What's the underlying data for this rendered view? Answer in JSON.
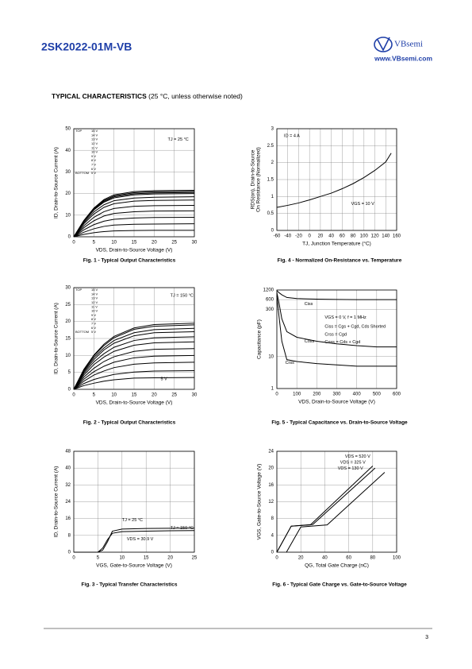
{
  "header": {
    "title": "2SK2022-01M-VB",
    "logo": "VBsemi",
    "url": "www.VBsemi.com"
  },
  "section": {
    "title": "TYPICAL CHARACTERISTICS",
    "note": "(25 °C, unless otherwise noted)"
  },
  "chart_data": [
    {
      "type": "line",
      "caption": "Fig. 1 - Typical Output Characteristics",
      "x_label": "VDS, Drain-to-Source Voltage (V)",
      "y_label": "ID, Drain-to-Source Current (A)",
      "xlim": [
        0,
        30
      ],
      "xticks": [
        0,
        5,
        10,
        15,
        20,
        25,
        30
      ],
      "ylim": [
        0,
        50
      ],
      "yticks": [
        0,
        10,
        20,
        30,
        40,
        50
      ],
      "grid": true,
      "color": "#000000",
      "legend": "list",
      "legend_top": "TOP",
      "legend_bottom": "BOTTOM",
      "annotations": [
        "TJ = 25 °C"
      ],
      "x": [
        0,
        2.5,
        5,
        7.5,
        10,
        15,
        20,
        30
      ],
      "series": [
        {
          "name": "15 V",
          "values": [
            0,
            7.5,
            13.3,
            17.2,
            19.4,
            20.9,
            21.3,
            21.5
          ]
        },
        {
          "name": "14 V",
          "values": [
            0,
            7.4,
            13.0,
            16.8,
            18.9,
            20.4,
            20.8,
            21
          ]
        },
        {
          "name": "13 V",
          "values": [
            0,
            7.2,
            12.7,
            16.4,
            18.5,
            19.9,
            20.3,
            20.5
          ]
        },
        {
          "name": "12 V",
          "values": [
            0,
            7,
            12.4,
            16,
            18,
            19.4,
            19.8,
            20
          ]
        },
        {
          "name": "11 V",
          "values": [
            0,
            6.5,
            11.5,
            14.8,
            16.7,
            17.9,
            18.3,
            18.5
          ]
        },
        {
          "name": "10 V",
          "values": [
            0,
            6,
            10.5,
            13.6,
            15.3,
            16.5,
            16.8,
            17
          ]
        },
        {
          "name": "9 V",
          "values": [
            0,
            5.1,
            9,
            11.6,
            13.1,
            14.1,
            14.4,
            14.5
          ]
        },
        {
          "name": "8 V",
          "values": [
            0,
            4.2,
            7.4,
            9.6,
            10.8,
            11.6,
            11.9,
            12
          ]
        },
        {
          "name": "7 V",
          "values": [
            0,
            3.2,
            5.6,
            7.2,
            8.1,
            8.7,
            8.9,
            9
          ]
        },
        {
          "name": "6 V",
          "values": [
            0,
            2.1,
            3.7,
            4.8,
            5.4,
            5.8,
            5.9,
            6
          ]
        },
        {
          "name": "5 V",
          "values": [
            0,
            1.1,
            1.9,
            2.4,
            2.7,
            2.9,
            3,
            3
          ]
        }
      ]
    },
    {
      "type": "line",
      "caption": "Fig. 2 - Typical Output Characteristics",
      "x_label": "VDS, Drain-to-Source Voltage (V)",
      "y_label": "ID, Drain-to-Source Current (A)",
      "xlim": [
        0,
        30
      ],
      "xticks": [
        0,
        5,
        10,
        15,
        20,
        25,
        30
      ],
      "ylim": [
        0,
        30
      ],
      "yticks": [
        0,
        5,
        10,
        15,
        20,
        25,
        30
      ],
      "grid": true,
      "color": "#000000",
      "legend": "list",
      "legend_top": "TOP",
      "legend_bottom": "BOTTOM",
      "annotations": [
        "TJ = 150 °C",
        "5 V"
      ],
      "x": [
        0,
        2.5,
        5,
        7.5,
        10,
        15,
        20,
        30
      ],
      "series": [
        {
          "name": "15 V",
          "values": [
            0,
            5.9,
            10.1,
            13.3,
            15.6,
            18.1,
            19.1,
            19.5
          ]
        },
        {
          "name": "14 V",
          "values": [
            0,
            5.7,
            9.9,
            12.9,
            15.2,
            17.7,
            18.6,
            19
          ]
        },
        {
          "name": "13 V",
          "values": [
            0,
            5.4,
            9.4,
            12.2,
            14.4,
            16.7,
            17.6,
            18
          ]
        },
        {
          "name": "12 V",
          "values": [
            0,
            5.1,
            8.8,
            11.6,
            13.6,
            15.8,
            16.7,
            17
          ]
        },
        {
          "name": "11 V",
          "values": [
            0,
            4.7,
            8.1,
            10.5,
            12.4,
            14.4,
            15.2,
            15.5
          ]
        },
        {
          "name": "10 V",
          "values": [
            0,
            4.2,
            7.3,
            9.5,
            11.2,
            13,
            13.7,
            14
          ]
        },
        {
          "name": "9 V",
          "values": [
            0,
            3.6,
            6.2,
            8.2,
            9.6,
            11.2,
            11.8,
            12
          ]
        },
        {
          "name": "8 V",
          "values": [
            0,
            3,
            5.2,
            6.8,
            8,
            9.3,
            9.8,
            10
          ]
        },
        {
          "name": "7 V",
          "values": [
            0,
            2.4,
            4.2,
            5.4,
            6.4,
            7.4,
            7.8,
            8
          ]
        },
        {
          "name": "6 V",
          "values": [
            0,
            1.7,
            2.9,
            3.7,
            4.4,
            5.1,
            5.4,
            5.5
          ]
        },
        {
          "name": "5 V",
          "values": [
            0,
            1.1,
            1.8,
            2.4,
            2.8,
            3.3,
            3.4,
            3.5
          ]
        }
      ]
    },
    {
      "type": "line",
      "caption": "Fig. 3 - Typical Transfer Characteristics",
      "x_label": "VGS, Gate-to-Source Voltage (V)",
      "y_label": "ID, Drain-to-Source Current (A)",
      "xlim": [
        0,
        25
      ],
      "xticks": [
        0,
        5,
        10,
        15,
        20,
        25
      ],
      "ylim": [
        0,
        48
      ],
      "yticks": [
        0,
        8,
        16,
        24,
        32,
        40,
        48
      ],
      "grid": true,
      "color": "#000000",
      "annotations": [
        "TJ = 25 °C",
        "TJ = 150 °C",
        "VDS = 30.9 V"
      ],
      "x": [
        0,
        5,
        6,
        7,
        8,
        10,
        15,
        20,
        25
      ],
      "series": [
        {
          "name": "TJ = 25 °C",
          "values": [
            0,
            0,
            1,
            5,
            10,
            11,
            11.3,
            11.4,
            11.5
          ]
        },
        {
          "name": "TJ = 150 °C",
          "values": [
            0,
            0,
            2,
            6,
            9,
            9.8,
            10,
            10.2,
            10.3
          ]
        }
      ]
    },
    {
      "type": "line",
      "caption": "Fig. 4 - Normalized On-Resistance vs. Temperature",
      "x_label": "TJ, Junction Temperature (°C)",
      "y_label": [
        "RDS(on), Drain-to-Source",
        "On Resistance (Normalized)"
      ],
      "xlim": [
        -60,
        160
      ],
      "xticks": [
        -60,
        -40,
        -20,
        0,
        20,
        40,
        60,
        80,
        100,
        120,
        140,
        160
      ],
      "ylim": [
        0,
        3
      ],
      "yticks": [
        0,
        0.5,
        1,
        1.5,
        2,
        2.5,
        3
      ],
      "grid": true,
      "color": "#000000",
      "annotations": [
        "ID = 4 A",
        "VGS = 10 V"
      ],
      "x": [
        -60,
        -40,
        -20,
        0,
        20,
        40,
        60,
        80,
        100,
        120,
        140,
        150
      ],
      "series": [
        {
          "name": "RDS(on)",
          "values": [
            0.68,
            0.74,
            0.81,
            0.9,
            1.0,
            1.1,
            1.23,
            1.38,
            1.56,
            1.77,
            2.02,
            2.28
          ]
        }
      ]
    },
    {
      "type": "line",
      "caption": "Fig. 5 - Typical Capacitance vs. Drain-to-Source Voltage",
      "x_label": "VDS, Drain-to-Source Voltage (V)",
      "y_label": "Capacitance (pF)",
      "xlim": [
        0,
        600
      ],
      "xticks": [
        0,
        100,
        200,
        300,
        400,
        500,
        600
      ],
      "ylim": [
        1,
        1200
      ],
      "yticks": [
        1,
        10,
        300,
        600,
        1200
      ],
      "log_y": true,
      "grid": true,
      "color": "#000000",
      "legend": "inline",
      "annotations": [
        "VGS = 0 V, f = 1 MHz",
        "Ciss = Cgs + Cgd, Cds Shorted",
        "Crss = Cgd",
        "Coss = Cds + Cgd"
      ],
      "x": [
        0,
        10,
        25,
        50,
        100,
        200,
        300,
        400,
        500,
        600
      ],
      "series": [
        {
          "name": "Ciss",
          "values": [
            1150,
            1000,
            850,
            700,
            650,
            620,
            610,
            600,
            600,
            600
          ]
        },
        {
          "name": "Coss",
          "values": [
            1000,
            500,
            150,
            60,
            40,
            30,
            25,
            22,
            20,
            20
          ]
        },
        {
          "name": "Crss",
          "values": [
            800,
            200,
            30,
            8,
            7,
            6,
            5.5,
            5,
            5,
            5
          ]
        }
      ]
    },
    {
      "type": "line",
      "caption": "Fig. 6 - Typical Gate Charge vs. Gate-to-Source Voltage",
      "x_label": "QG, Total Gate Charge (nC)",
      "y_label": "VGS, Gate-to-Source Voltage (V)",
      "xlim": [
        0,
        100
      ],
      "xticks": [
        0,
        20,
        40,
        60,
        80,
        100
      ],
      "ylim": [
        0,
        24
      ],
      "yticks": [
        0,
        4,
        8,
        12,
        16,
        20,
        24
      ],
      "grid": true,
      "color": "#000000",
      "legend": "inline",
      "series": [
        {
          "name": "VDS = 520 V",
          "x": [
            8,
            20,
            42,
            90
          ],
          "values": [
            0,
            6,
            6.5,
            19
          ]
        },
        {
          "name": "VDS = 325 V",
          "x": [
            0,
            12,
            30,
            82
          ],
          "values": [
            0,
            6.2,
            6.6,
            20
          ]
        },
        {
          "name": "VDS = 130 V",
          "x": [
            0,
            12,
            28,
            80
          ],
          "values": [
            0,
            6.2,
            6.5,
            20.5
          ]
        }
      ]
    }
  ],
  "footer": {
    "page": "3"
  }
}
